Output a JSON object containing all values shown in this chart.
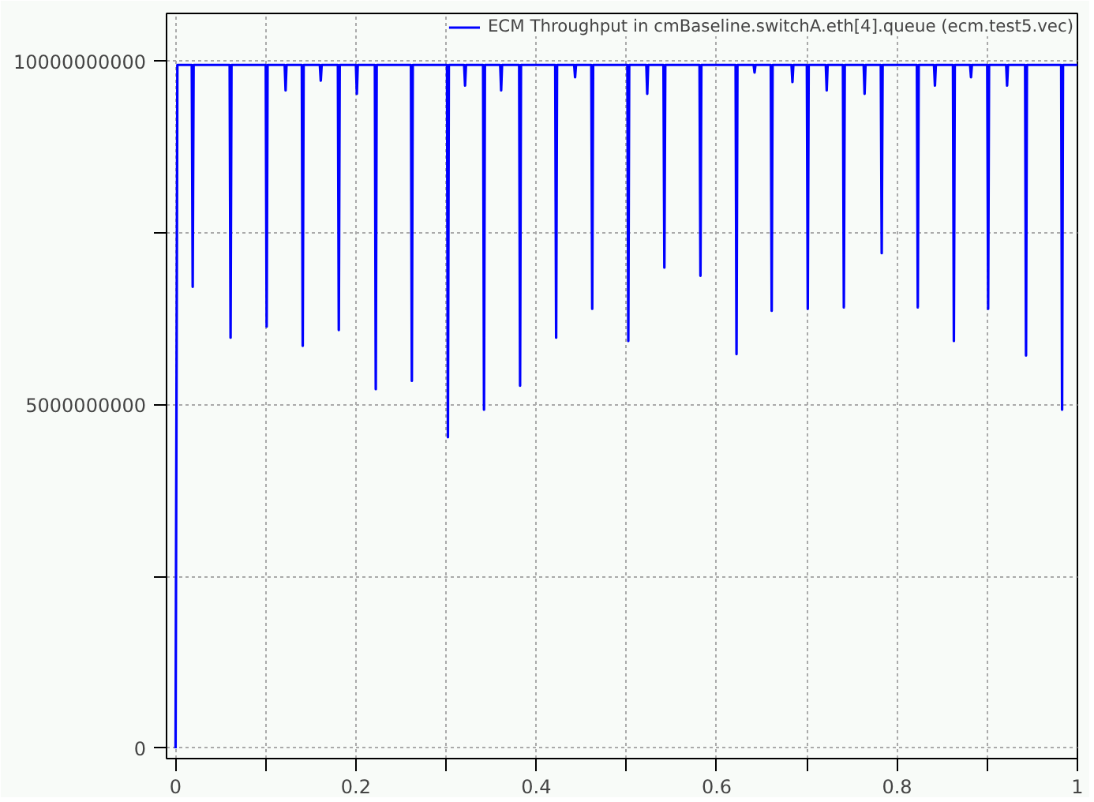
{
  "chart_data": {
    "type": "line",
    "series": [
      {
        "name": "ECM Throughput in cmBaseline.switchA.eth[4].queue (ecm.test5.vec)",
        "color": "#0000ff",
        "x": [
          0,
          0.002,
          0.018,
          0.019,
          0.02,
          0.06,
          0.061,
          0.062,
          0.1,
          0.101,
          0.102,
          0.121,
          0.122,
          0.123,
          0.14,
          0.141,
          0.142,
          0.16,
          0.161,
          0.162,
          0.18,
          0.181,
          0.182,
          0.2,
          0.201,
          0.202,
          0.221,
          0.222,
          0.223,
          0.261,
          0.262,
          0.263,
          0.301,
          0.302,
          0.303,
          0.32,
          0.321,
          0.322,
          0.341,
          0.342,
          0.343,
          0.36,
          0.361,
          0.362,
          0.381,
          0.382,
          0.383,
          0.421,
          0.422,
          0.423,
          0.442,
          0.443,
          0.444,
          0.461,
          0.462,
          0.463,
          0.501,
          0.502,
          0.503,
          0.522,
          0.523,
          0.524,
          0.541,
          0.542,
          0.543,
          0.581,
          0.582,
          0.583,
          0.621,
          0.622,
          0.623,
          0.641,
          0.642,
          0.643,
          0.66,
          0.661,
          0.662,
          0.683,
          0.684,
          0.685,
          0.7,
          0.701,
          0.702,
          0.721,
          0.722,
          0.723,
          0.74,
          0.741,
          0.742,
          0.763,
          0.764,
          0.765,
          0.782,
          0.783,
          0.784,
          0.822,
          0.823,
          0.824,
          0.841,
          0.842,
          0.843,
          0.862,
          0.863,
          0.864,
          0.881,
          0.882,
          0.883,
          0.9,
          0.901,
          0.902,
          0.921,
          0.922,
          0.923,
          0.942,
          0.943,
          0.944,
          0.982,
          0.983,
          0.984,
          1
        ],
        "values": [
          0,
          9950000000,
          9950000000,
          6720000000,
          9950000000,
          9950000000,
          5980000000,
          9950000000,
          9950000000,
          6140000000,
          9950000000,
          9950000000,
          9580000000,
          9950000000,
          9950000000,
          5860000000,
          9950000000,
          9950000000,
          9720000000,
          9950000000,
          9950000000,
          6090000000,
          9950000000,
          9950000000,
          9530000000,
          9950000000,
          9950000000,
          5230000000,
          9950000000,
          9950000000,
          5350000000,
          9950000000,
          9950000000,
          4530000000,
          9950000000,
          9950000000,
          9650000000,
          9950000000,
          9950000000,
          4930000000,
          9950000000,
          9950000000,
          9580000000,
          9950000000,
          9950000000,
          5280000000,
          9950000000,
          9950000000,
          5980000000,
          9950000000,
          9950000000,
          9770000000,
          9950000000,
          9950000000,
          6400000000,
          9950000000,
          9950000000,
          5930000000,
          9950000000,
          9950000000,
          9530000000,
          9950000000,
          9950000000,
          7000000000,
          9950000000,
          9950000000,
          6880000000,
          9950000000,
          9950000000,
          5740000000,
          9950000000,
          9950000000,
          9840000000,
          9950000000,
          9950000000,
          6370000000,
          9950000000,
          9950000000,
          9700000000,
          9950000000,
          9950000000,
          6400000000,
          9950000000,
          9950000000,
          9580000000,
          9950000000,
          9950000000,
          6420000000,
          9950000000,
          9950000000,
          9530000000,
          9950000000,
          9950000000,
          7210000000,
          9950000000,
          9950000000,
          6420000000,
          9950000000,
          9950000000,
          9650000000,
          9950000000,
          9950000000,
          5930000000,
          9950000000,
          9950000000,
          9770000000,
          9950000000,
          9950000000,
          6400000000,
          9950000000,
          9950000000,
          9650000000,
          9950000000,
          9950000000,
          5720000000,
          9950000000,
          9950000000,
          4930000000,
          9950000000,
          9950000000
        ]
      }
    ],
    "xlim": [
      -0.01,
      1.0
    ],
    "ylim": [
      -150000000,
      10700000000
    ],
    "xticks": [
      0,
      {
        "value": 0.1,
        "label": null
      },
      0.2,
      {
        "value": 0.3,
        "label": null
      },
      0.4,
      {
        "value": 0.5,
        "label": null
      },
      0.6,
      {
        "value": 0.7,
        "label": null
      },
      0.8,
      {
        "value": 0.9,
        "label": null
      },
      1
    ],
    "yticks": [
      0,
      {
        "value": 2500000000,
        "label": null
      },
      5000000000,
      {
        "value": 7500000000,
        "label": null
      },
      10000000000
    ],
    "grid": true,
    "legend": "top right",
    "marker": "none",
    "line_style": "solid"
  }
}
